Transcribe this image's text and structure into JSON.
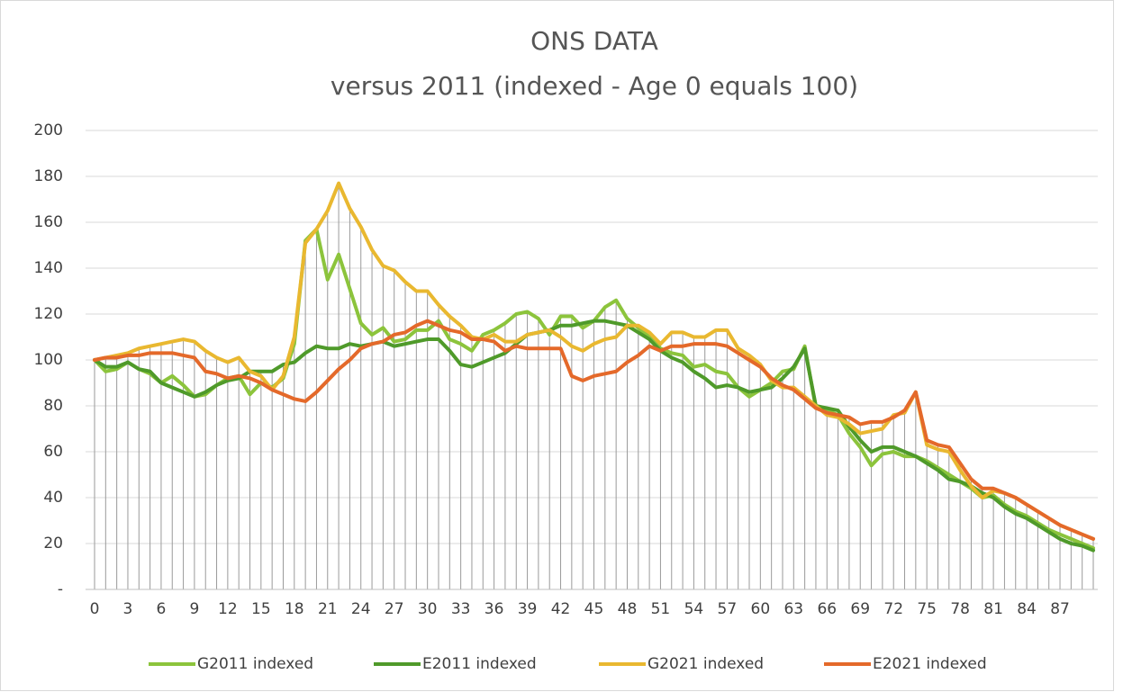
{
  "chart_data": {
    "type": "line",
    "title": "ONS DATA",
    "subtitle": "versus 2011 (indexed - Age 0 equals 100)",
    "categories": [
      0,
      null,
      null,
      3,
      null,
      null,
      6,
      null,
      null,
      9,
      null,
      null,
      12,
      null,
      null,
      15,
      null,
      null,
      18,
      null,
      null,
      21,
      null,
      null,
      24,
      null,
      null,
      27,
      null,
      null,
      30,
      null,
      null,
      33,
      null,
      null,
      36,
      null,
      null,
      39,
      null,
      null,
      42,
      null,
      null,
      45,
      null,
      null,
      48,
      null,
      null,
      51,
      null,
      null,
      54,
      null,
      null,
      57,
      null,
      null,
      60,
      null,
      null,
      63,
      null,
      null,
      66,
      null,
      null,
      69,
      null,
      null,
      72,
      null,
      null,
      75,
      null,
      null,
      78,
      null,
      null,
      81,
      null,
      null,
      84,
      null,
      null,
      87,
      null,
      null,
      null
    ],
    "series": [
      {
        "name": "G2011 indexed",
        "color": "#8cc43c",
        "values": [
          100,
          95,
          96,
          99,
          96,
          94,
          90,
          93,
          89,
          84,
          85,
          89,
          92,
          93,
          85,
          90,
          88,
          92,
          107,
          152,
          157,
          135,
          146,
          131,
          116,
          111,
          114,
          108,
          109,
          113,
          113,
          117,
          109,
          107,
          104,
          111,
          113,
          116,
          120,
          121,
          118,
          111,
          119,
          119,
          114,
          117,
          123,
          126,
          118,
          114,
          110,
          105,
          103,
          102,
          97,
          98,
          95,
          94,
          88,
          84,
          87,
          90,
          95,
          96,
          106,
          79,
          78,
          76,
          68,
          62,
          54,
          59,
          60,
          58,
          58,
          56,
          53,
          50,
          47,
          44,
          40,
          41,
          37,
          34,
          32,
          29,
          26,
          24,
          22,
          20,
          18
        ]
      },
      {
        "name": "E2011 indexed",
        "color": "#4f9a2a",
        "values": [
          100,
          97,
          97,
          99,
          96,
          95,
          90,
          88,
          86,
          84,
          86,
          89,
          91,
          92,
          95,
          95,
          95,
          98,
          99,
          103,
          106,
          105,
          105,
          107,
          106,
          107,
          108,
          106,
          107,
          108,
          109,
          109,
          104,
          98,
          97,
          99,
          101,
          103,
          107,
          111,
          112,
          113,
          115,
          115,
          116,
          117,
          117,
          116,
          115,
          112,
          109,
          104,
          101,
          99,
          95,
          92,
          88,
          89,
          88,
          86,
          87,
          88,
          92,
          97,
          105,
          80,
          79,
          78,
          71,
          65,
          60,
          62,
          62,
          60,
          58,
          55,
          52,
          48,
          47,
          45,
          42,
          40,
          36,
          33,
          31,
          28,
          25,
          22,
          20,
          19,
          17
        ]
      },
      {
        "name": "G2021 indexed",
        "color": "#e9b830",
        "values": [
          100,
          101,
          102,
          103,
          105,
          106,
          107,
          108,
          109,
          108,
          104,
          101,
          99,
          101,
          95,
          93,
          87,
          93,
          110,
          151,
          157,
          165,
          177,
          166,
          158,
          148,
          141,
          139,
          134,
          130,
          130,
          124,
          119,
          115,
          110,
          109,
          111,
          108,
          108,
          111,
          112,
          113,
          110,
          106,
          104,
          107,
          109,
          110,
          115,
          115,
          112,
          107,
          112,
          112,
          110,
          110,
          113,
          113,
          105,
          102,
          98,
          91,
          88,
          88,
          84,
          80,
          76,
          75,
          72,
          68,
          69,
          70,
          76,
          77,
          86,
          63,
          61,
          60,
          52,
          45,
          40,
          43,
          42,
          40,
          37,
          34,
          31,
          28,
          26,
          24,
          22
        ]
      },
      {
        "name": "E2021 indexed",
        "color": "#e4692a",
        "values": [
          100,
          101,
          101,
          102,
          102,
          103,
          103,
          103,
          102,
          101,
          95,
          94,
          92,
          93,
          92,
          90,
          87,
          85,
          83,
          82,
          86,
          91,
          96,
          100,
          105,
          107,
          108,
          111,
          112,
          115,
          117,
          115,
          113,
          112,
          109,
          109,
          108,
          104,
          106,
          105,
          105,
          105,
          105,
          93,
          91,
          93,
          94,
          95,
          99,
          102,
          106,
          104,
          106,
          106,
          107,
          107,
          107,
          106,
          103,
          100,
          97,
          92,
          89,
          87,
          83,
          79,
          77,
          76,
          75,
          72,
          73,
          73,
          75,
          78,
          86,
          65,
          63,
          62,
          55,
          48,
          44,
          44,
          42,
          40,
          37,
          34,
          31,
          28,
          26,
          24,
          22
        ]
      }
    ],
    "ylim": [
      0,
      200
    ],
    "yticks": [
      {
        "value": 0,
        "label": "-"
      },
      20,
      40,
      60,
      80,
      100,
      120,
      140,
      160,
      180,
      200
    ],
    "grid": true,
    "drop_lines": true,
    "legend": "bottom"
  }
}
